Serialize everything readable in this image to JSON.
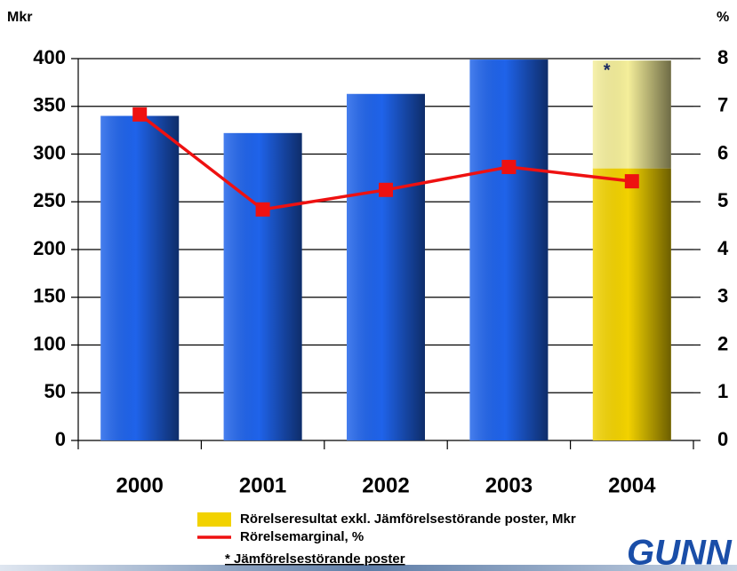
{
  "chart_data": {
    "type": "bar",
    "y_label": "Mkr",
    "y2_label": "%",
    "categories": [
      "2000",
      "2001",
      "2002",
      "2003",
      "2004"
    ],
    "series": [
      {
        "name": "Rörelseresultat exkl. Jämförelsestörande poster, Mkr",
        "type": "bar",
        "color": "#1f63ea",
        "colors": [
          "#1f63ea",
          "#1f63ea",
          "#1f63ea",
          "#1f63ea",
          "#f2d200"
        ],
        "values": [
          340,
          322,
          363,
          399,
          285
        ]
      },
      {
        "name": "* Jämförelsestörande poster",
        "type": "bar",
        "stacked": true,
        "color": "#f4ee9a",
        "values": [
          null,
          null,
          null,
          null,
          113
        ]
      },
      {
        "name": "Rörelsemarginal, %",
        "type": "line",
        "axis": "y2",
        "color": "#ee1111",
        "values": [
          6.83,
          4.84,
          5.25,
          5.73,
          5.43
        ]
      }
    ],
    "annotation": "*",
    "logo": "GUNN",
    "ylim": [
      0,
      400
    ],
    "yticks": [
      0,
      50,
      100,
      150,
      200,
      250,
      300,
      350,
      400
    ],
    "y2lim": [
      0,
      8
    ],
    "y2ticks": [
      0,
      1,
      2,
      3,
      4,
      5,
      6,
      7,
      8
    ],
    "grid": true
  }
}
